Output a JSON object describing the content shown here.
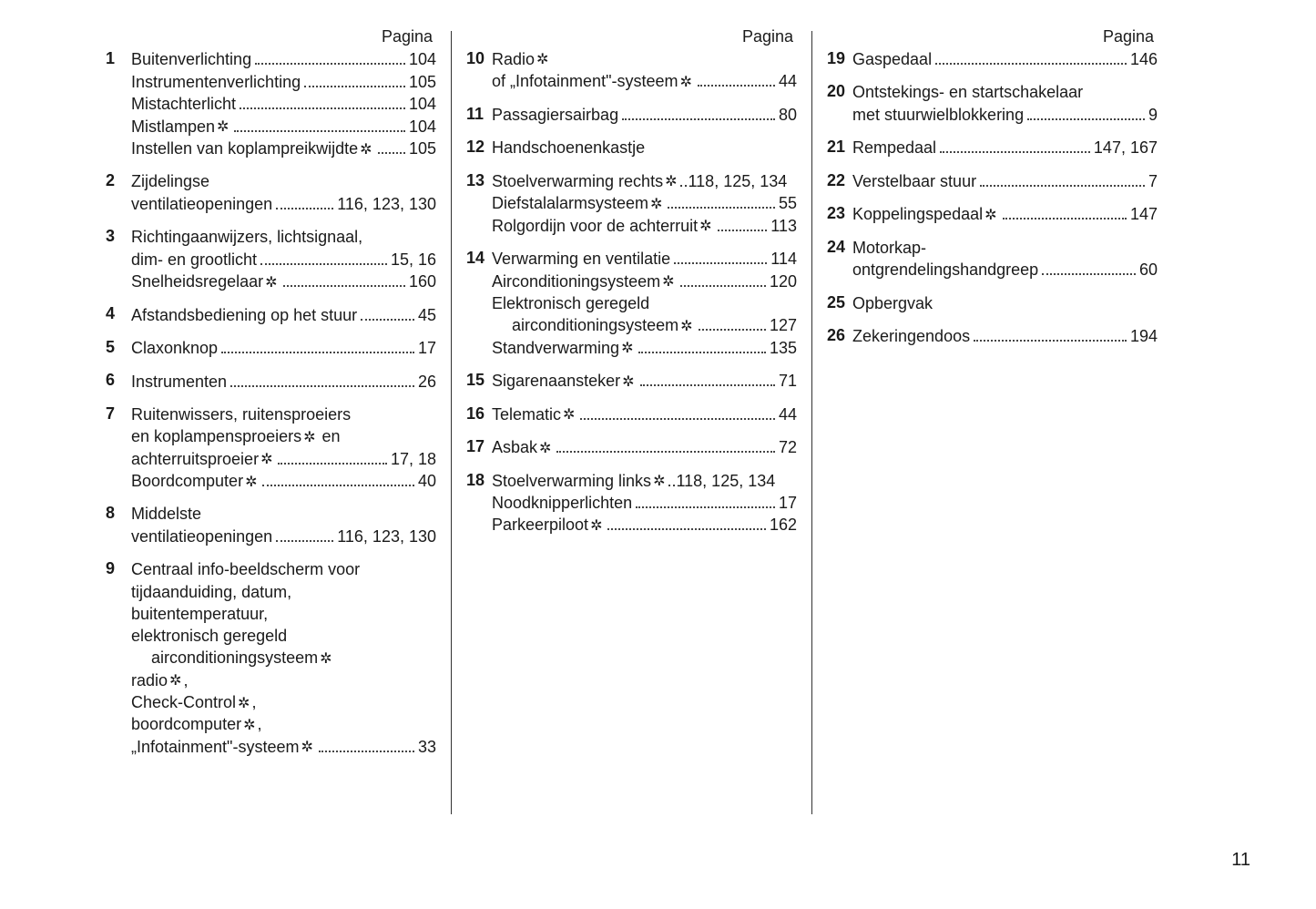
{
  "header_label": "Pagina",
  "page_number": "11",
  "star_glyph": "✲",
  "columns": [
    [
      {
        "num": "1",
        "lines": [
          {
            "text": "Buitenverlichting",
            "page": "104"
          },
          {
            "text": "Instrumentenverlichting",
            "page": "105"
          },
          {
            "text": "Mistachterlicht",
            "page": "104"
          },
          {
            "text": "Mistlampen",
            "star": true,
            "page": "104"
          },
          {
            "text": "Instellen van koplampreikwijdte",
            "star": true,
            "page": "105"
          }
        ]
      },
      {
        "num": "2",
        "lines": [
          {
            "text": "Zijdelingse"
          },
          {
            "text": "ventilatieopeningen",
            "page": "116, 123, 130"
          }
        ]
      },
      {
        "num": "3",
        "lines": [
          {
            "text": "Richtingaanwijzers, lichtsignaal,"
          },
          {
            "text": "dim- en grootlicht",
            "page": "15, 16"
          },
          {
            "text": "Snelheidsregelaar",
            "star": true,
            "page": "160"
          }
        ]
      },
      {
        "num": "4",
        "lines": [
          {
            "text": "Afstandsbediening op het stuur",
            "page": "45"
          }
        ]
      },
      {
        "num": "5",
        "lines": [
          {
            "text": "Claxonknop",
            "page": "17"
          }
        ]
      },
      {
        "num": "6",
        "lines": [
          {
            "text": "Instrumenten",
            "page": "26"
          }
        ]
      },
      {
        "num": "7",
        "lines": [
          {
            "text": "Ruitenwissers, ruitensproeiers"
          },
          {
            "text_pre": "en koplampensproeiers",
            "star": true,
            "text_post": " en"
          },
          {
            "text": "achterruitsproeier",
            "star": true,
            "page": "17, 18"
          },
          {
            "text": "Boordcomputer",
            "star": true,
            "page": "40"
          }
        ]
      },
      {
        "num": "8",
        "lines": [
          {
            "text": "Middelste"
          },
          {
            "text": "ventilatieopeningen",
            "page": "116, 123, 130"
          }
        ]
      },
      {
        "num": "9",
        "lines": [
          {
            "text": "Centraal info-beeldscherm voor"
          },
          {
            "text": "tijdaanduiding, datum,"
          },
          {
            "text": "buitentemperatuur,"
          },
          {
            "text": "elektronisch geregeld"
          },
          {
            "text": "airconditioningsysteem",
            "star": true,
            "indent": true
          },
          {
            "text_pre": "radio",
            "star": true,
            "text_post": ","
          },
          {
            "text_pre": "Check-Control",
            "star": true,
            "text_post": ","
          },
          {
            "text_pre": "boordcomputer",
            "star": true,
            "text_post": ","
          },
          {
            "text": "„Infotainment\"-systeem",
            "star": true,
            "page": "33"
          }
        ]
      }
    ],
    [
      {
        "num": "10",
        "lines": [
          {
            "text": "Radio",
            "star": true
          },
          {
            "text": "of „Infotainment\"-systeem",
            "star": true,
            "page": "44"
          }
        ]
      },
      {
        "num": "11",
        "lines": [
          {
            "text": "Passagiersairbag",
            "page": "80"
          }
        ]
      },
      {
        "num": "12",
        "lines": [
          {
            "text": "Handschoenenkastje"
          }
        ]
      },
      {
        "num": "13",
        "lines": [
          {
            "text_pre": "Stoelverwarming rechts",
            "star": true,
            "page": "118, 125, 134",
            "tight": true
          },
          {
            "text": "Diefstalalarmsysteem",
            "star": true,
            "page": "55"
          },
          {
            "text": "Rolgordijn voor de achterruit",
            "star": true,
            "page": "113"
          }
        ]
      },
      {
        "num": "14",
        "lines": [
          {
            "text": "Verwarming en ventilatie",
            "page": "114"
          },
          {
            "text": "Airconditioningsysteem",
            "star": true,
            "page": "120"
          },
          {
            "text": "Elektronisch geregeld"
          },
          {
            "text": "airconditioningsysteem",
            "star": true,
            "page": "127",
            "indent": true
          },
          {
            "text": "Standverwarming",
            "star": true,
            "page": "135"
          }
        ]
      },
      {
        "num": "15",
        "lines": [
          {
            "text": "Sigarenaansteker",
            "star": true,
            "page": "71"
          }
        ]
      },
      {
        "num": "16",
        "lines": [
          {
            "text": "Telematic",
            "star": true,
            "page": "44"
          }
        ]
      },
      {
        "num": "17",
        "lines": [
          {
            "text": "Asbak",
            "star": true,
            "page": "72"
          }
        ]
      },
      {
        "num": "18",
        "lines": [
          {
            "text_pre": "Stoelverwarming links",
            "star": true,
            "page": "118, 125, 134",
            "tight": true
          },
          {
            "text": "Noodknipperlichten",
            "page": "17"
          },
          {
            "text": "Parkeerpiloot",
            "star": true,
            "page": "162"
          }
        ]
      }
    ],
    [
      {
        "num": "19",
        "lines": [
          {
            "text": "Gaspedaal",
            "page": "146"
          }
        ]
      },
      {
        "num": "20",
        "lines": [
          {
            "text": "Ontstekings- en startschakelaar"
          },
          {
            "text": "met stuurwielblokkering",
            "page": "9"
          }
        ]
      },
      {
        "num": "21",
        "lines": [
          {
            "text": "Rempedaal",
            "page": "147, 167"
          }
        ]
      },
      {
        "num": "22",
        "lines": [
          {
            "text": "Verstelbaar stuur",
            "page": "7"
          }
        ]
      },
      {
        "num": "23",
        "lines": [
          {
            "text": "Koppelingspedaal",
            "star": true,
            "page": "147"
          }
        ]
      },
      {
        "num": "24",
        "lines": [
          {
            "text": "Motorkap-"
          },
          {
            "text": "ontgrendelingshandgreep",
            "page": "60"
          }
        ]
      },
      {
        "num": "25",
        "lines": [
          {
            "text": "Opbergvak"
          }
        ]
      },
      {
        "num": "26",
        "lines": [
          {
            "text": "Zekeringendoos",
            "page": "194"
          }
        ]
      }
    ]
  ]
}
